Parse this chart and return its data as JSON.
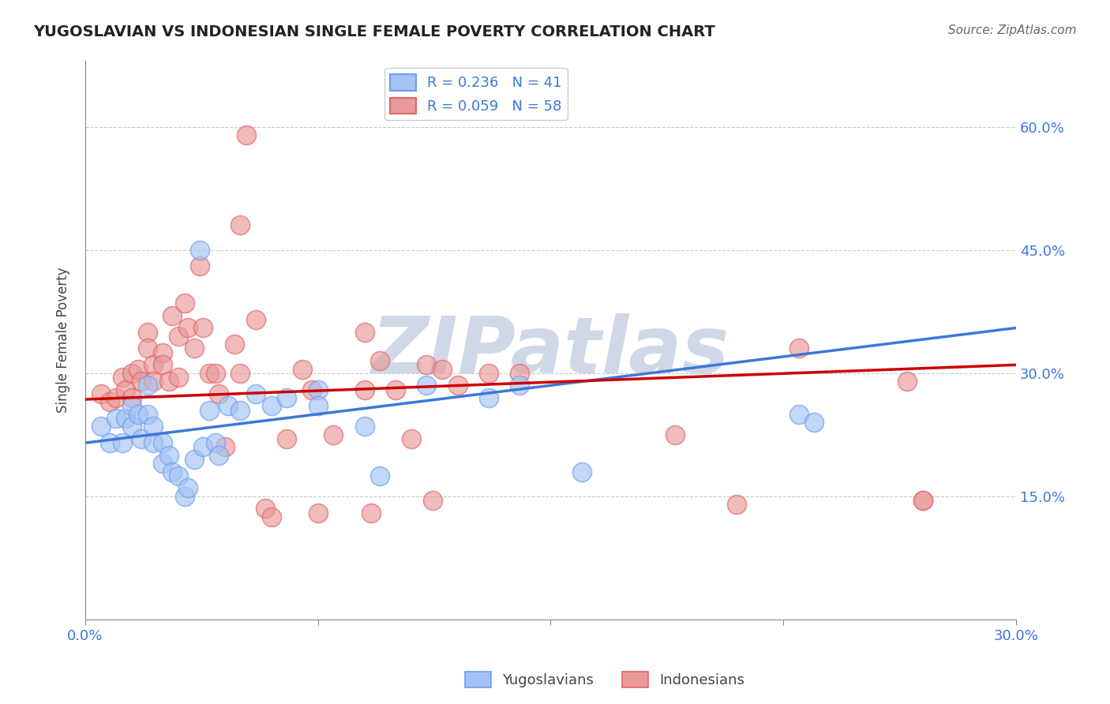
{
  "title": "YUGOSLAVIAN VS INDONESIAN SINGLE FEMALE POVERTY CORRELATION CHART",
  "source": "Source: ZipAtlas.com",
  "ylabel": "Single Female Poverty",
  "y_ticks_right": [
    15.0,
    30.0,
    45.0,
    60.0
  ],
  "xlim": [
    0.0,
    0.3
  ],
  "ylim": [
    0.0,
    0.68
  ],
  "blue_R": 0.236,
  "blue_N": 41,
  "pink_R": 0.059,
  "pink_N": 58,
  "blue_color": "#a4c2f4",
  "pink_color": "#ea9999",
  "blue_edge_color": "#6d9eeb",
  "pink_edge_color": "#e06666",
  "blue_line_color": "#3c78d8",
  "pink_line_color": "#cc0000",
  "blue_scatter": [
    [
      0.005,
      0.235
    ],
    [
      0.008,
      0.215
    ],
    [
      0.01,
      0.245
    ],
    [
      0.012,
      0.215
    ],
    [
      0.013,
      0.245
    ],
    [
      0.015,
      0.26
    ],
    [
      0.015,
      0.235
    ],
    [
      0.017,
      0.25
    ],
    [
      0.018,
      0.22
    ],
    [
      0.02,
      0.285
    ],
    [
      0.02,
      0.25
    ],
    [
      0.022,
      0.235
    ],
    [
      0.022,
      0.215
    ],
    [
      0.025,
      0.215
    ],
    [
      0.025,
      0.19
    ],
    [
      0.027,
      0.2
    ],
    [
      0.028,
      0.18
    ],
    [
      0.03,
      0.175
    ],
    [
      0.032,
      0.15
    ],
    [
      0.033,
      0.16
    ],
    [
      0.035,
      0.195
    ],
    [
      0.037,
      0.45
    ],
    [
      0.038,
      0.21
    ],
    [
      0.04,
      0.255
    ],
    [
      0.042,
      0.215
    ],
    [
      0.043,
      0.2
    ],
    [
      0.046,
      0.26
    ],
    [
      0.05,
      0.255
    ],
    [
      0.055,
      0.275
    ],
    [
      0.06,
      0.26
    ],
    [
      0.065,
      0.27
    ],
    [
      0.075,
      0.28
    ],
    [
      0.075,
      0.26
    ],
    [
      0.09,
      0.235
    ],
    [
      0.095,
      0.175
    ],
    [
      0.11,
      0.285
    ],
    [
      0.13,
      0.27
    ],
    [
      0.14,
      0.285
    ],
    [
      0.16,
      0.18
    ],
    [
      0.23,
      0.25
    ],
    [
      0.235,
      0.24
    ]
  ],
  "pink_scatter": [
    [
      0.005,
      0.275
    ],
    [
      0.008,
      0.265
    ],
    [
      0.01,
      0.27
    ],
    [
      0.012,
      0.295
    ],
    [
      0.013,
      0.28
    ],
    [
      0.015,
      0.3
    ],
    [
      0.015,
      0.27
    ],
    [
      0.017,
      0.305
    ],
    [
      0.018,
      0.29
    ],
    [
      0.02,
      0.35
    ],
    [
      0.02,
      0.33
    ],
    [
      0.022,
      0.31
    ],
    [
      0.022,
      0.29
    ],
    [
      0.025,
      0.325
    ],
    [
      0.025,
      0.31
    ],
    [
      0.027,
      0.29
    ],
    [
      0.028,
      0.37
    ],
    [
      0.03,
      0.345
    ],
    [
      0.03,
      0.295
    ],
    [
      0.032,
      0.385
    ],
    [
      0.033,
      0.355
    ],
    [
      0.035,
      0.33
    ],
    [
      0.037,
      0.43
    ],
    [
      0.038,
      0.355
    ],
    [
      0.04,
      0.3
    ],
    [
      0.042,
      0.3
    ],
    [
      0.043,
      0.275
    ],
    [
      0.045,
      0.21
    ],
    [
      0.048,
      0.335
    ],
    [
      0.05,
      0.3
    ],
    [
      0.05,
      0.48
    ],
    [
      0.052,
      0.59
    ],
    [
      0.055,
      0.365
    ],
    [
      0.058,
      0.135
    ],
    [
      0.06,
      0.125
    ],
    [
      0.065,
      0.22
    ],
    [
      0.07,
      0.305
    ],
    [
      0.073,
      0.28
    ],
    [
      0.075,
      0.13
    ],
    [
      0.08,
      0.225
    ],
    [
      0.09,
      0.35
    ],
    [
      0.09,
      0.28
    ],
    [
      0.092,
      0.13
    ],
    [
      0.095,
      0.315
    ],
    [
      0.1,
      0.28
    ],
    [
      0.105,
      0.22
    ],
    [
      0.11,
      0.31
    ],
    [
      0.112,
      0.145
    ],
    [
      0.115,
      0.305
    ],
    [
      0.12,
      0.285
    ],
    [
      0.13,
      0.3
    ],
    [
      0.14,
      0.3
    ],
    [
      0.19,
      0.225
    ],
    [
      0.21,
      0.14
    ],
    [
      0.23,
      0.33
    ],
    [
      0.265,
      0.29
    ],
    [
      0.27,
      0.145
    ],
    [
      0.27,
      0.145
    ]
  ],
  "background_color": "#ffffff",
  "grid_color": "#bbbbbb",
  "watermark": "ZIPatlas",
  "watermark_color": "#d0d8e8",
  "legend_entries": [
    "Yugoslavians",
    "Indonesians"
  ]
}
